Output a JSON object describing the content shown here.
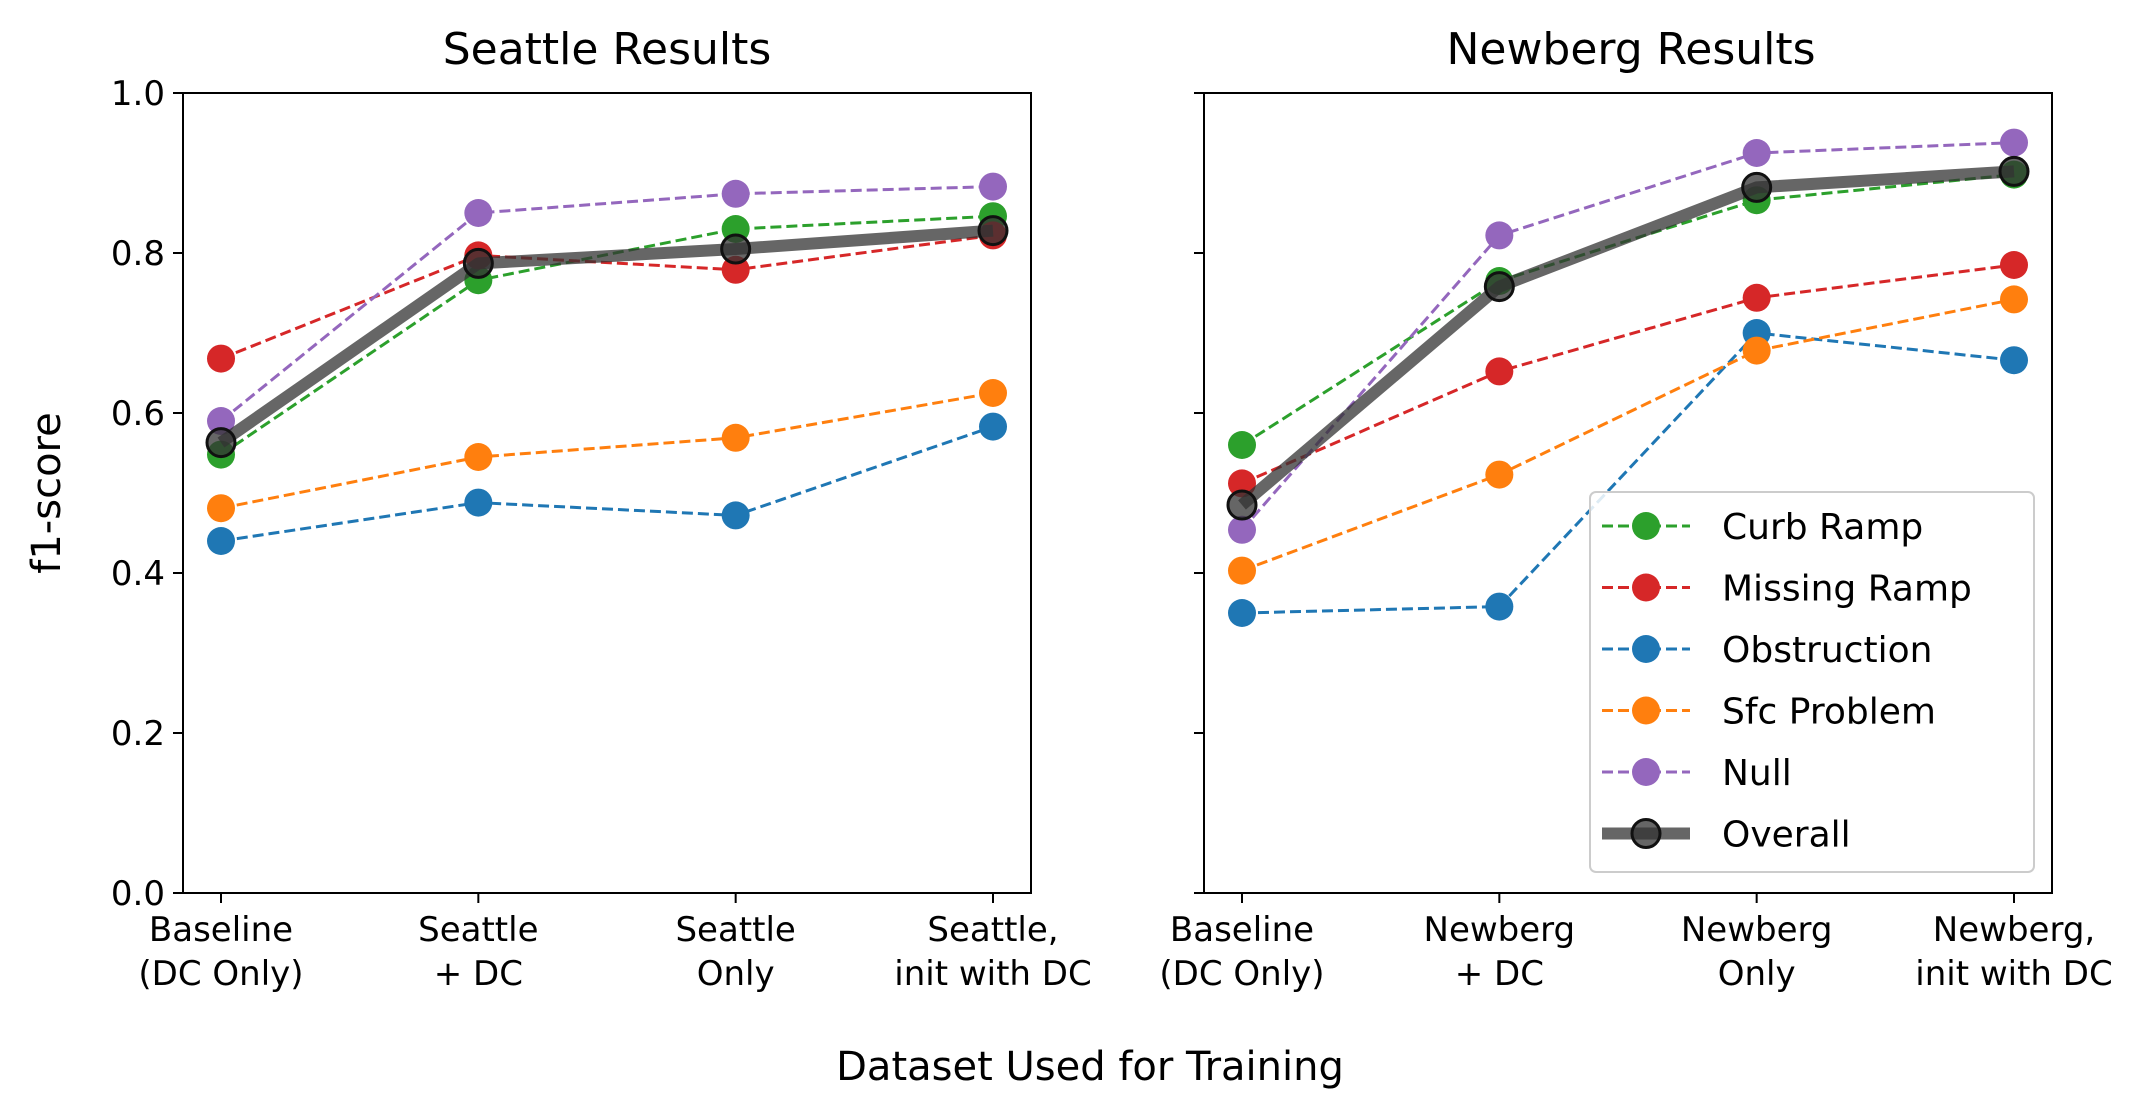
{
  "figure": {
    "xlabel": "Dataset Used for Training",
    "ylabel": "f1-score"
  },
  "colors": {
    "Curb Ramp": "#2ca02c",
    "Missing Ramp": "#d62728",
    "Obstruction": "#1f77b4",
    "Sfc Problem": "#ff7f0e",
    "Null": "#9467bd",
    "Overall": "#333333"
  },
  "legend": {
    "placement": "lower right of right panel",
    "entries": [
      "Curb Ramp",
      "Missing Ramp",
      "Obstruction",
      "Sfc Problem",
      "Null",
      "Overall"
    ]
  },
  "chart_data": [
    {
      "type": "line",
      "title": "Seattle Results",
      "ylabel": "f1-score",
      "ylim": [
        0.0,
        1.0
      ],
      "yticks": [
        "0.0",
        "0.2",
        "0.4",
        "0.6",
        "0.8",
        "1.0"
      ],
      "categories": [
        [
          "Baseline",
          "(DC Only)"
        ],
        [
          "Seattle",
          "+ DC"
        ],
        [
          "Seattle",
          "Only"
        ],
        [
          "Seattle,",
          "init with DC"
        ]
      ],
      "series": [
        {
          "name": "Curb Ramp",
          "values": [
            0.548,
            0.766,
            0.83,
            0.846
          ]
        },
        {
          "name": "Missing Ramp",
          "values": [
            0.668,
            0.797,
            0.779,
            0.822
          ]
        },
        {
          "name": "Obstruction",
          "values": [
            0.44,
            0.488,
            0.472,
            0.583
          ]
        },
        {
          "name": "Sfc Problem",
          "values": [
            0.481,
            0.545,
            0.569,
            0.625
          ]
        },
        {
          "name": "Null",
          "values": [
            0.59,
            0.85,
            0.874,
            0.883
          ]
        },
        {
          "name": "Overall",
          "values": [
            0.563,
            0.787,
            0.805,
            0.828
          ]
        }
      ]
    },
    {
      "type": "line",
      "title": "Newberg Results",
      "ylim": [
        0.0,
        1.0
      ],
      "categories": [
        [
          "Baseline",
          "(DC Only)"
        ],
        [
          "Newberg",
          "+ DC"
        ],
        [
          "Newberg",
          "Only"
        ],
        [
          "Newberg,",
          "init with DC"
        ]
      ],
      "series": [
        {
          "name": "Curb Ramp",
          "values": [
            0.56,
            0.765,
            0.866,
            0.898
          ]
        },
        {
          "name": "Missing Ramp",
          "values": [
            0.512,
            0.652,
            0.744,
            0.785
          ]
        },
        {
          "name": "Obstruction",
          "values": [
            0.35,
            0.358,
            0.7,
            0.666
          ]
        },
        {
          "name": "Sfc Problem",
          "values": [
            0.403,
            0.523,
            0.678,
            0.742
          ]
        },
        {
          "name": "Null",
          "values": [
            0.454,
            0.822,
            0.925,
            0.938
          ]
        },
        {
          "name": "Overall",
          "values": [
            0.485,
            0.758,
            0.882,
            0.902
          ]
        }
      ]
    }
  ]
}
